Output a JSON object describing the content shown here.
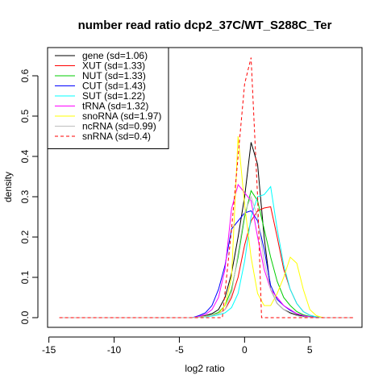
{
  "chart_data": {
    "type": "line",
    "title": "number read ratio dcp2_37C/WT_S288C_Ter",
    "xlabel": "log2 ratio",
    "ylabel": "density",
    "xlim": [
      -15.1,
      9.0
    ],
    "ylim": [
      -0.024,
      0.67
    ],
    "xticks": [
      -15,
      -10,
      -5,
      0,
      5
    ],
    "yticks": [
      0.0,
      0.1,
      0.2,
      0.3,
      0.4,
      0.5,
      0.6
    ],
    "xtick_labels": [
      "-15",
      "-10",
      "-5",
      "0",
      "5"
    ],
    "ytick_labels": [
      "0.0",
      "0.1",
      "0.2",
      "0.3",
      "0.4",
      "0.5",
      "0.6"
    ],
    "legend_position": "top-left",
    "grid": false,
    "series": [
      {
        "name": "gene (sd=1.06)",
        "color": "#000000",
        "dashed": false,
        "x": [
          -14.2,
          -4.0,
          -3.5,
          -3.0,
          -2.5,
          -2.0,
          -1.5,
          -1.0,
          -0.5,
          0.0,
          0.5,
          1.0,
          1.5,
          2.0,
          2.5,
          3.0,
          3.5,
          4.0,
          4.5,
          5.0,
          5.5,
          6.0,
          8.3
        ],
        "y": [
          0.0,
          0.0,
          0.002,
          0.005,
          0.01,
          0.02,
          0.05,
          0.11,
          0.2,
          0.3,
          0.435,
          0.38,
          0.2,
          0.07,
          0.035,
          0.02,
          0.012,
          0.007,
          0.004,
          0.002,
          0.001,
          0.0,
          0.0
        ]
      },
      {
        "name": "XUT (sd=1.33)",
        "color": "#ff0000",
        "dashed": false,
        "x": [
          -14.2,
          -4.0,
          -3.5,
          -3.0,
          -2.5,
          -2.0,
          -1.5,
          -1.0,
          -0.5,
          0.0,
          0.5,
          1.0,
          1.5,
          2.0,
          2.5,
          3.0,
          3.5,
          4.0,
          4.5,
          5.0,
          5.5,
          6.0,
          8.3
        ],
        "y": [
          0.0,
          0.0,
          0.002,
          0.004,
          0.006,
          0.01,
          0.02,
          0.05,
          0.1,
          0.18,
          0.24,
          0.265,
          0.272,
          0.275,
          0.2,
          0.12,
          0.07,
          0.035,
          0.015,
          0.006,
          0.002,
          0.0,
          0.0
        ]
      },
      {
        "name": "NUT (sd=1.33)",
        "color": "#00cd00",
        "dashed": false,
        "x": [
          -14.2,
          -4.0,
          -3.5,
          -3.0,
          -2.5,
          -2.0,
          -1.5,
          -1.0,
          -0.5,
          0.0,
          0.5,
          1.0,
          1.5,
          2.0,
          2.5,
          3.0,
          3.5,
          4.0,
          4.5,
          5.0,
          5.5,
          6.0,
          8.3
        ],
        "y": [
          0.0,
          0.0,
          0.002,
          0.004,
          0.007,
          0.013,
          0.03,
          0.07,
          0.15,
          0.25,
          0.315,
          0.29,
          0.22,
          0.15,
          0.09,
          0.05,
          0.03,
          0.015,
          0.007,
          0.003,
          0.001,
          0.0,
          0.0
        ]
      },
      {
        "name": "CUT (sd=1.43)",
        "color": "#0000ff",
        "dashed": false,
        "x": [
          -14.2,
          -4.0,
          -3.5,
          -3.0,
          -2.5,
          -2.0,
          -1.5,
          -1.0,
          -0.5,
          0.0,
          0.5,
          1.0,
          1.5,
          2.0,
          2.5,
          3.0,
          3.5,
          4.0,
          4.5,
          5.0,
          5.5,
          6.0,
          8.3
        ],
        "y": [
          0.0,
          0.0,
          0.005,
          0.012,
          0.03,
          0.07,
          0.13,
          0.22,
          0.24,
          0.26,
          0.265,
          0.24,
          0.17,
          0.08,
          0.045,
          0.03,
          0.018,
          0.01,
          0.005,
          0.002,
          0.001,
          0.0,
          0.0
        ]
      },
      {
        "name": "SUT (sd=1.22)",
        "color": "#00ffff",
        "dashed": false,
        "x": [
          -14.2,
          -4.0,
          -3.5,
          -3.0,
          -2.5,
          -2.0,
          -1.5,
          -1.0,
          -0.5,
          0.0,
          0.5,
          1.0,
          1.5,
          2.0,
          2.5,
          3.0,
          3.5,
          4.0,
          4.5,
          5.0,
          5.5,
          6.0,
          8.3
        ],
        "y": [
          0.0,
          0.0,
          0.001,
          0.002,
          0.004,
          0.007,
          0.012,
          0.025,
          0.06,
          0.14,
          0.25,
          0.3,
          0.305,
          0.325,
          0.22,
          0.13,
          0.07,
          0.035,
          0.015,
          0.006,
          0.002,
          0.0,
          0.0
        ]
      },
      {
        "name": "tRNA (sd=1.32)",
        "color": "#ff00ff",
        "dashed": false,
        "x": [
          -14.2,
          -4.0,
          -3.5,
          -3.0,
          -2.5,
          -2.0,
          -1.5,
          -1.0,
          -0.5,
          0.0,
          0.5,
          1.0,
          1.5,
          2.0,
          2.5,
          3.0,
          3.5,
          4.0,
          4.5,
          5.0,
          5.5,
          6.0,
          8.3
        ],
        "y": [
          0.0,
          0.0,
          0.003,
          0.008,
          0.02,
          0.05,
          0.12,
          0.27,
          0.33,
          0.31,
          0.29,
          0.2,
          0.12,
          0.07,
          0.05,
          0.03,
          0.02,
          0.01,
          0.005,
          0.002,
          0.0,
          0.0,
          0.0
        ]
      },
      {
        "name": "snoRNA (sd=1.97)",
        "color": "#ffff00",
        "dashed": false,
        "x": [
          -14.2,
          -4.0,
          -3.0,
          -2.0,
          -1.5,
          -1.0,
          -0.5,
          0.0,
          0.5,
          1.0,
          1.5,
          2.0,
          2.5,
          3.0,
          3.5,
          4.0,
          4.5,
          5.0,
          5.5,
          6.0,
          8.3
        ],
        "y": [
          0.0,
          0.0,
          0.003,
          0.01,
          0.03,
          0.1,
          0.45,
          0.28,
          0.15,
          0.06,
          0.03,
          0.03,
          0.06,
          0.1,
          0.15,
          0.135,
          0.07,
          0.02,
          0.005,
          0.0,
          0.0
        ]
      },
      {
        "name": "ncRNA (sd=0.99)",
        "color": "#bebebe",
        "dashed": false,
        "x": [
          -14.2,
          -4.0,
          -3.0,
          -2.0,
          -1.5,
          -1.0,
          -0.5,
          0.0,
          0.5,
          1.0,
          1.5,
          2.0,
          2.5,
          3.0,
          3.5,
          4.0,
          4.5,
          5.0,
          5.5,
          6.0,
          8.3
        ],
        "y": [
          0.0,
          0.0,
          0.003,
          0.01,
          0.02,
          0.06,
          0.16,
          0.26,
          0.3,
          0.25,
          0.14,
          0.07,
          0.035,
          0.02,
          0.01,
          0.005,
          0.002,
          0.001,
          0.0,
          0.0,
          0.0
        ]
      },
      {
        "name": "snRNA (sd=0.4)",
        "color": "#ff0000",
        "dashed": true,
        "x": [
          -14.2,
          -1.7,
          -1.0,
          -0.5,
          0.0,
          0.5,
          1.0,
          1.3,
          8.3
        ],
        "y": [
          0.0,
          0.0,
          0.22,
          0.4,
          0.58,
          0.645,
          0.3,
          0.0,
          0.0
        ]
      }
    ]
  }
}
